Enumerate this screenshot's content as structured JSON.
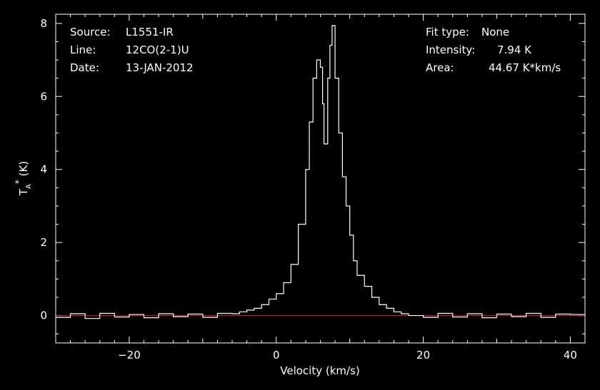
{
  "info_left": {
    "source_label": "Source:",
    "source_value": "L1551-IR",
    "line_label": "Line:",
    "line_value": "12CO(2-1)U",
    "date_label": "Date:",
    "date_value": "13-JAN-2012"
  },
  "info_right": {
    "fit_label": "Fit type:",
    "fit_value": "None",
    "intensity_label": "Intensity:",
    "intensity_value": "7.94 K",
    "area_label": "Area:",
    "area_value": "44.67 K*km/s"
  },
  "chart_data": {
    "type": "line",
    "xlabel": "Velocity (km/s)",
    "ylabel": "T*A (K)",
    "xlim": [
      -30,
      42
    ],
    "ylim": [
      -0.75,
      8.25
    ],
    "x_ticks": [
      -20,
      0,
      20,
      40
    ],
    "y_ticks": [
      0,
      2,
      4,
      6,
      8
    ],
    "grid": false,
    "style": "step",
    "series": [
      {
        "line_color": "#ffffff",
        "points": [
          [
            -30,
            -0.05
          ],
          [
            -28,
            0.05
          ],
          [
            -26,
            -0.08
          ],
          [
            -24,
            0.06
          ],
          [
            -22,
            -0.04
          ],
          [
            -20,
            0.03
          ],
          [
            -18,
            -0.06
          ],
          [
            -16,
            0.05
          ],
          [
            -14,
            -0.03
          ],
          [
            -12,
            0.04
          ],
          [
            -10,
            -0.05
          ],
          [
            -8,
            0.06
          ],
          [
            -6,
            0.05
          ],
          [
            -5,
            0.1
          ],
          [
            -4,
            0.15
          ],
          [
            -3,
            0.2
          ],
          [
            -2,
            0.3
          ],
          [
            -1,
            0.45
          ],
          [
            0,
            0.6
          ],
          [
            1,
            0.9
          ],
          [
            2,
            1.4
          ],
          [
            3,
            2.5
          ],
          [
            4,
            4.0
          ],
          [
            4.5,
            5.3
          ],
          [
            5,
            6.5
          ],
          [
            5.5,
            7.0
          ],
          [
            6,
            6.8
          ],
          [
            6.3,
            5.8
          ],
          [
            6.5,
            4.7
          ],
          [
            7,
            6.5
          ],
          [
            7.3,
            7.4
          ],
          [
            7.6,
            7.94
          ],
          [
            8,
            6.5
          ],
          [
            8.5,
            5.0
          ],
          [
            9,
            3.8
          ],
          [
            9.5,
            3.0
          ],
          [
            10,
            2.2
          ],
          [
            10.5,
            1.5
          ],
          [
            11,
            1.1
          ],
          [
            12,
            0.8
          ],
          [
            13,
            0.5
          ],
          [
            14,
            0.3
          ],
          [
            15,
            0.2
          ],
          [
            16,
            0.1
          ],
          [
            17,
            0.05
          ],
          [
            18,
            0.0
          ],
          [
            20,
            -0.05
          ],
          [
            22,
            0.06
          ],
          [
            24,
            -0.04
          ],
          [
            26,
            0.05
          ],
          [
            28,
            -0.06
          ],
          [
            30,
            0.04
          ],
          [
            32,
            -0.03
          ],
          [
            34,
            0.06
          ],
          [
            36,
            -0.05
          ],
          [
            38,
            0.04
          ],
          [
            40,
            0.03
          ],
          [
            42,
            0.0
          ]
        ]
      },
      {
        "line_color": "#e02020",
        "points": [
          [
            -30,
            0
          ],
          [
            42,
            0
          ]
        ]
      }
    ]
  }
}
